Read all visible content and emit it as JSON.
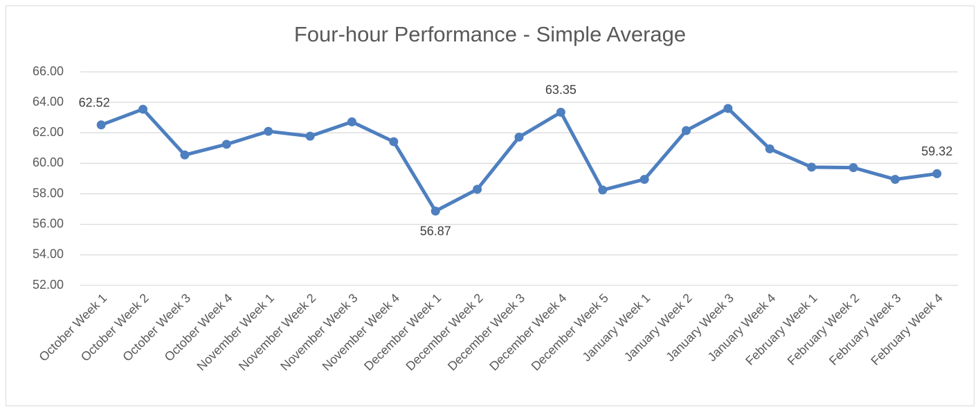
{
  "chart_data": {
    "type": "line",
    "title": "Four-hour Performance - Simple Average",
    "categories": [
      "October Week 1",
      "October Week 2",
      "October Week 3",
      "October Week 4",
      "November Week 1",
      "November Week 2",
      "November Week 3",
      "November Week 4",
      "December Week 1",
      "December Week 2",
      "December Week 3",
      "December Week 4",
      "December Week 5",
      "January Week 1",
      "January Week 2",
      "January Week 3",
      "January Week 4",
      "February Week 1",
      "February Week 2",
      "February Week 3",
      "February Week 4"
    ],
    "values": [
      62.52,
      63.55,
      60.55,
      61.25,
      62.1,
      61.78,
      62.72,
      61.42,
      56.87,
      58.3,
      61.72,
      63.35,
      58.25,
      58.95,
      62.15,
      63.6,
      60.95,
      59.75,
      59.72,
      58.95,
      59.32
    ],
    "value_labels": [
      "62.52",
      null,
      null,
      null,
      null,
      null,
      null,
      null,
      "56.87",
      null,
      null,
      "63.35",
      null,
      null,
      null,
      null,
      null,
      null,
      null,
      null,
      "59.32"
    ],
    "color": "#4e7fbf",
    "ylim": [
      52,
      66
    ],
    "yticks": [
      {
        "value": 52,
        "label": "52.00"
      },
      {
        "value": 54,
        "label": "54.00"
      },
      {
        "value": 56,
        "label": "56.00"
      },
      {
        "value": 58,
        "label": "58.00"
      },
      {
        "value": 60,
        "label": "60.00"
      },
      {
        "value": 62,
        "label": "62.00"
      },
      {
        "value": 64,
        "label": "64.00"
      },
      {
        "value": 66,
        "label": "66.00"
      }
    ],
    "grid": true
  }
}
